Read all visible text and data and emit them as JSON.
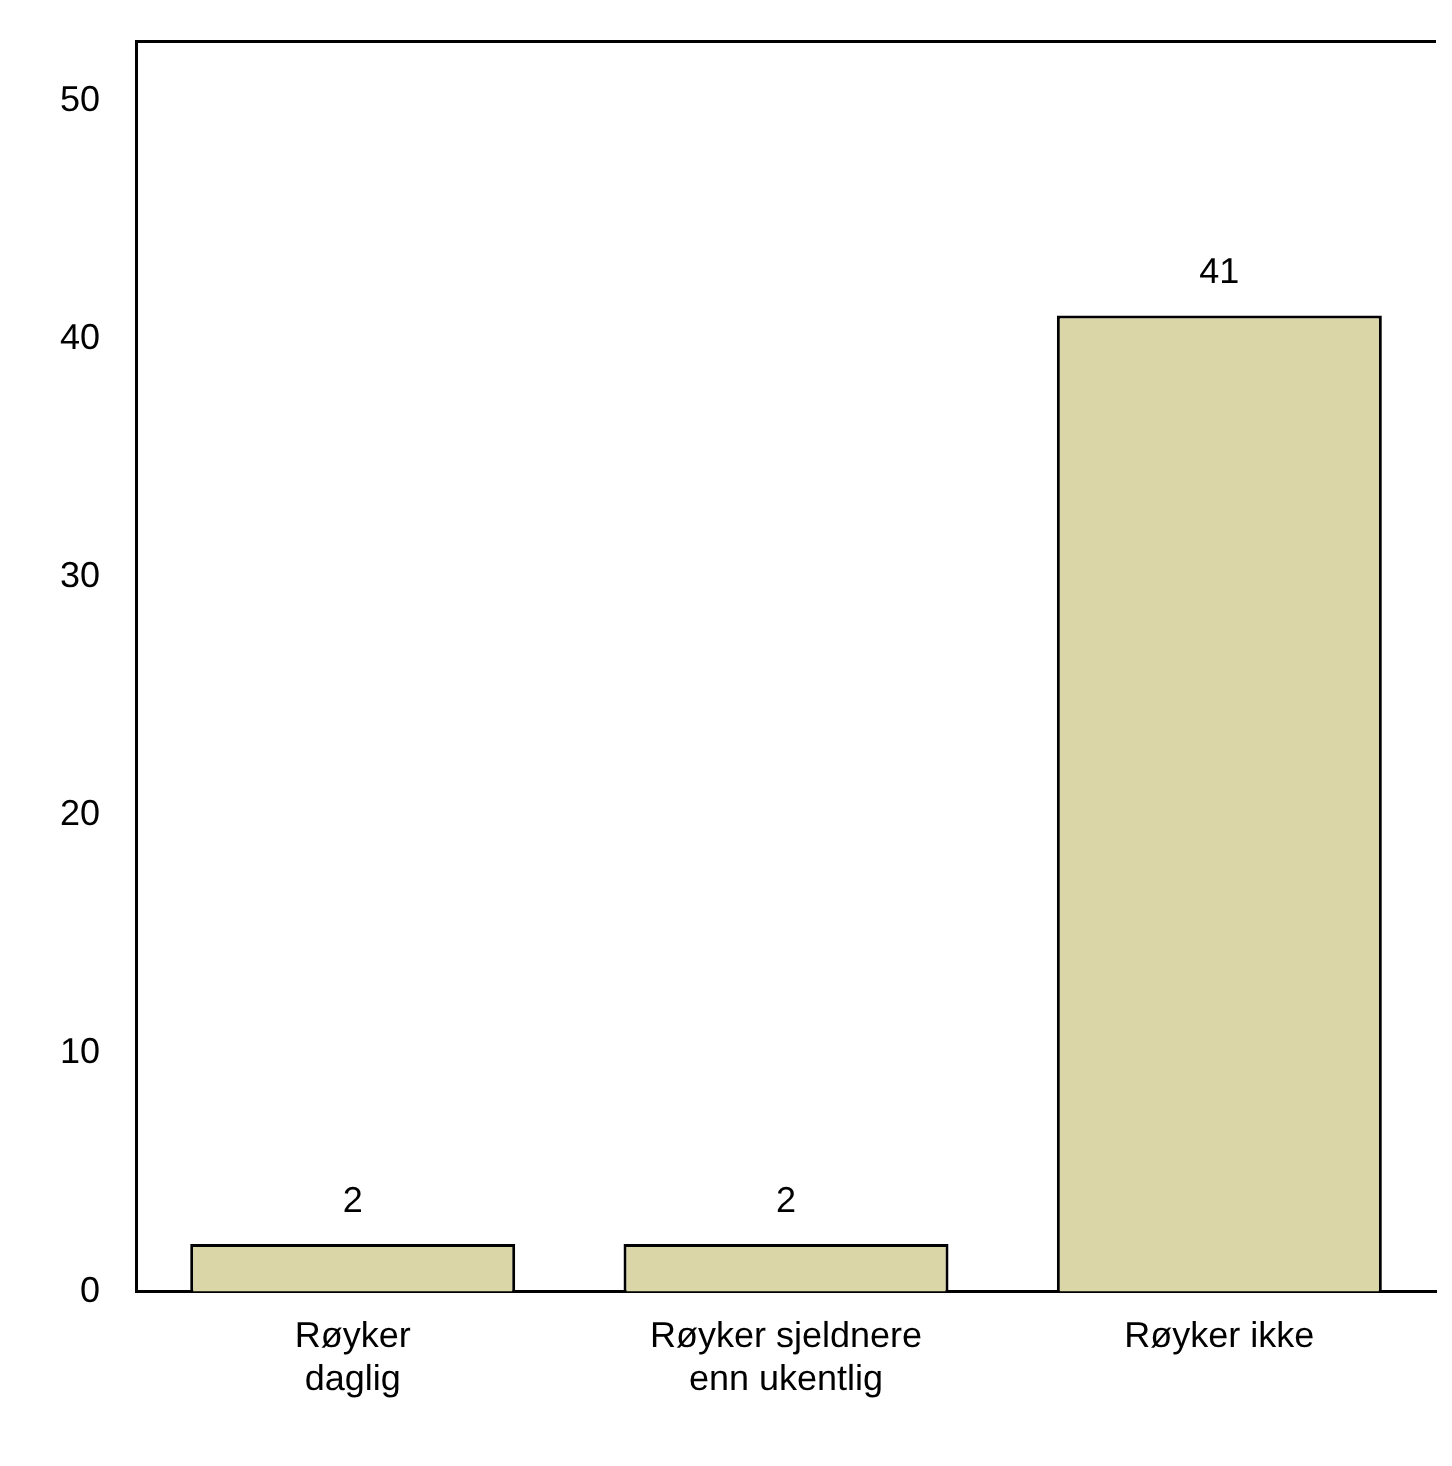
{
  "chart_data": {
    "type": "bar",
    "categories": [
      "Røyker\ndaglig",
      "Røyker sjeldnere\nenn ukentlig",
      "Røyker ikke"
    ],
    "values": [
      2,
      2,
      41
    ],
    "color": "#dbd6a8",
    "ylim": [
      0,
      52.5
    ],
    "yticks": [
      0,
      10,
      20,
      30,
      40,
      50
    ],
    "grid": false,
    "legend": false,
    "data_labels": true
  }
}
